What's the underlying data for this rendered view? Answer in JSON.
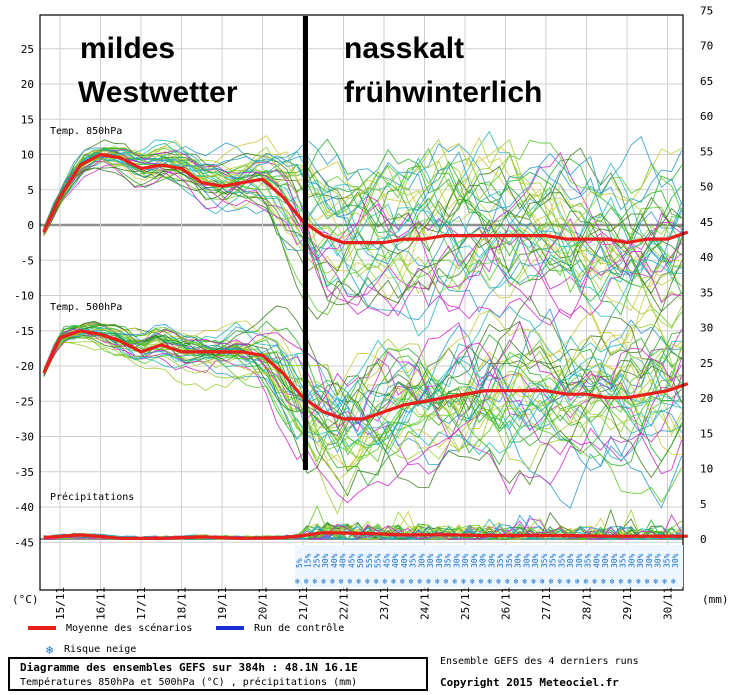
{
  "colors": {
    "mean": "#e8201a",
    "control": "#1a2ed8",
    "snow": "#1a6fd0",
    "grid": "#cfcfcf",
    "zero": "#909090",
    "members": [
      "#22b022",
      "#55c81e",
      "#9ccc2a",
      "#c8c832",
      "#2299cc",
      "#1fb8b8",
      "#cc22cc",
      "#3a7a1a"
    ]
  },
  "annotations": {
    "left_line1": "mildes",
    "left_line2": "Westwetter",
    "right_line1": "nasskalt",
    "right_line2": "frühwinterlich"
  },
  "footer": {
    "title": "Diagramme des ensembles GEFS sur 384h : 48.1N 16.1E",
    "subtitle": "Températures 850hPa et 500hPa (°C) , précipitations (mm)",
    "runs_note": "Ensemble GEFS des 4 derniers runs",
    "copyright": "Copyright 2015 Meteociel.fr"
  },
  "legend": {
    "mean": "Moyenne des scénarios",
    "control": "Run de contrôle",
    "snow": "Risque neige"
  },
  "chart_data": {
    "type": "line",
    "x": [
      "15/11",
      "16/11",
      "17/11",
      "18/11",
      "19/11",
      "20/11",
      "21/11",
      "22/11",
      "23/11",
      "24/11",
      "25/11",
      "26/11",
      "27/11",
      "28/11",
      "29/11",
      "30/11"
    ],
    "left_axis": {
      "unit": "(°C)",
      "ticks": [
        25,
        20,
        15,
        10,
        5,
        0,
        -5,
        -10,
        -15,
        -20,
        -25,
        -30,
        -35,
        -40,
        -45
      ]
    },
    "right_axis": {
      "unit": "(mm)",
      "ticks": [
        75,
        70,
        65,
        60,
        55,
        50,
        45,
        40,
        35,
        30,
        25,
        20,
        15,
        10,
        5,
        0
      ]
    },
    "panel_labels": [
      "Temp. 850hPa",
      "Temp. 500hPa",
      "Précipitations"
    ],
    "series": [
      {
        "name": "Moyenne des scénarios - Temp. 850hPa",
        "x": [
          14.6,
          15.0,
          15.5,
          16.0,
          16.5,
          17.0,
          17.5,
          18.0,
          18.5,
          19.0,
          19.5,
          20.0,
          20.5,
          21.0,
          21.5,
          22.0,
          22.5,
          23.0,
          23.5,
          24.0,
          24.5,
          25.0,
          25.5,
          26.0,
          26.5,
          27.0,
          27.5,
          28.0,
          28.5,
          29.0,
          29.5,
          30.0,
          30.5
        ],
        "values": [
          -1,
          4,
          8.5,
          10,
          9.5,
          8,
          8.5,
          8,
          6,
          5.5,
          6,
          6.5,
          4,
          0.5,
          -1.5,
          -2.5,
          -2.5,
          -2.5,
          -2,
          -2,
          -1.5,
          -1.5,
          -1.5,
          -1.5,
          -1.5,
          -1.5,
          -2,
          -2,
          -2,
          -2.5,
          -2,
          -2,
          -1
        ]
      },
      {
        "name": "Moyenne des scénarios - Temp. 500hPa",
        "x": [
          14.6,
          15.0,
          15.5,
          16.0,
          16.5,
          17.0,
          17.5,
          18.0,
          18.5,
          19.0,
          19.5,
          20.0,
          20.5,
          21.0,
          21.5,
          22.0,
          22.5,
          23.0,
          23.5,
          24.0,
          24.5,
          25.0,
          25.5,
          26.0,
          26.5,
          27.0,
          27.5,
          28.0,
          28.5,
          29.0,
          29.5,
          30.0,
          30.5
        ],
        "values": [
          -21,
          -16,
          -15,
          -15.5,
          -16.5,
          -18,
          -17,
          -18,
          -18,
          -18,
          -18,
          -18.5,
          -21,
          -24.5,
          -26.5,
          -27.5,
          -27.5,
          -26.5,
          -25.5,
          -25,
          -24.5,
          -24,
          -23.5,
          -23.5,
          -23.5,
          -23.5,
          -24,
          -24,
          -24.5,
          -24.5,
          -24,
          -23.5,
          -22.5
        ]
      },
      {
        "name": "Moyenne des scénarios - Précipitations",
        "x": [
          14.6,
          15.5,
          16.5,
          17.5,
          18.5,
          19.5,
          20.5,
          21.0,
          21.5,
          22.5,
          23.5,
          24.5,
          25.5,
          26.5,
          27.5,
          28.5,
          29.5,
          30.5
        ],
        "values": [
          0.2,
          0.6,
          0.1,
          0.1,
          0.3,
          0.1,
          0.2,
          0.5,
          0.9,
          0.8,
          0.6,
          0.6,
          0.5,
          0.5,
          0.5,
          0.4,
          0.4,
          0.4
        ]
      }
    ],
    "snow_risk_percent": [
      "5%",
      "15%",
      "25%",
      "30%",
      "40%",
      "40%",
      "45%",
      "50%",
      "55%",
      "55%",
      "45%",
      "40%",
      "40%",
      "35%",
      "30%",
      "30%",
      "30%",
      "35%",
      "30%",
      "30%",
      "30%",
      "30%",
      "30%",
      "35%",
      "35%",
      "30%",
      "30%",
      "30%",
      "35%",
      "35%",
      "35%",
      "30%",
      "30%",
      "35%",
      "40%",
      "30%",
      "30%",
      "35%",
      "30%",
      "30%",
      "30%",
      "30%",
      "35%",
      "30%"
    ],
    "grid": true
  }
}
